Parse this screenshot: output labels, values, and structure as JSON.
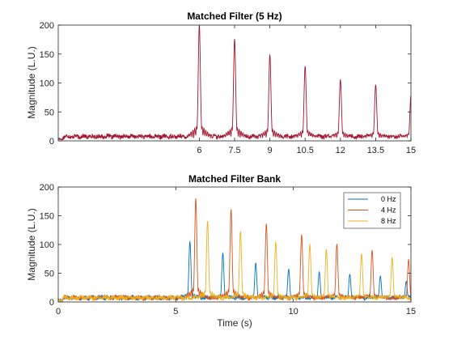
{
  "chart_data": [
    {
      "type": "line",
      "title": "Matched Filter (5 Hz)",
      "xlabel": "",
      "ylabel": "Magnitude (L.U.)",
      "xlim": [
        0,
        15
      ],
      "ylim": [
        0,
        200
      ],
      "xticks": [
        6,
        7.5,
        9,
        10.5,
        12,
        13.5,
        15
      ],
      "xtick_labels": [
        "6",
        "7.5",
        "9",
        "10.5",
        "12",
        "13.5",
        "15"
      ],
      "yticks": [
        0,
        50,
        100,
        150,
        200
      ],
      "ytick_labels": [
        "0",
        "50",
        "100",
        "150",
        "200"
      ],
      "grid": false,
      "colors": {
        "series": "#A2142F"
      },
      "series": [
        {
          "color": "#A2142F",
          "peaks": [
            {
              "x": 6.0,
              "y": 200
            },
            {
              "x": 7.5,
              "y": 176
            },
            {
              "x": 9.0,
              "y": 149
            },
            {
              "x": 10.5,
              "y": 129
            },
            {
              "x": 12.0,
              "y": 106
            },
            {
              "x": 13.5,
              "y": 97
            },
            {
              "x": 15.0,
              "y": 78
            }
          ],
          "baseline": 8
        }
      ]
    },
    {
      "type": "line",
      "title": "Matched Filter Bank",
      "xlabel": "Time (s)",
      "ylabel": "Magnitude (L.U.)",
      "xlim": [
        0,
        15
      ],
      "ylim": [
        0,
        200
      ],
      "xticks": [
        0,
        5,
        10,
        15
      ],
      "xtick_labels": [
        "0",
        "5",
        "10",
        "15"
      ],
      "yticks": [
        0,
        50,
        100,
        150,
        200
      ],
      "ytick_labels": [
        "0",
        "50",
        "100",
        "150",
        "200"
      ],
      "grid": false,
      "legend": {
        "position": "top-right"
      },
      "series": [
        {
          "name": "0 Hz",
          "color": "#0072BD",
          "peaks": [
            {
              "x": 5.6,
              "y": 105
            },
            {
              "x": 7.0,
              "y": 85
            },
            {
              "x": 8.4,
              "y": 68
            },
            {
              "x": 9.8,
              "y": 57
            },
            {
              "x": 11.1,
              "y": 52
            },
            {
              "x": 12.4,
              "y": 48
            },
            {
              "x": 13.7,
              "y": 45
            },
            {
              "x": 14.8,
              "y": 36
            }
          ],
          "baseline": 8
        },
        {
          "name": "4 Hz",
          "color": "#D95319",
          "peaks": [
            {
              "x": 5.85,
              "y": 180
            },
            {
              "x": 7.35,
              "y": 161
            },
            {
              "x": 8.85,
              "y": 136
            },
            {
              "x": 10.35,
              "y": 117
            },
            {
              "x": 11.85,
              "y": 101
            },
            {
              "x": 13.35,
              "y": 90
            },
            {
              "x": 14.9,
              "y": 74
            }
          ],
          "baseline": 8
        },
        {
          "name": "8 Hz",
          "color": "#EDB120",
          "peaks": [
            {
              "x": 6.35,
              "y": 141
            },
            {
              "x": 7.75,
              "y": 123
            },
            {
              "x": 9.25,
              "y": 104
            },
            {
              "x": 10.7,
              "y": 100
            },
            {
              "x": 11.4,
              "y": 92
            },
            {
              "x": 12.9,
              "y": 84
            },
            {
              "x": 14.2,
              "y": 77
            }
          ],
          "baseline": 8
        }
      ]
    }
  ]
}
